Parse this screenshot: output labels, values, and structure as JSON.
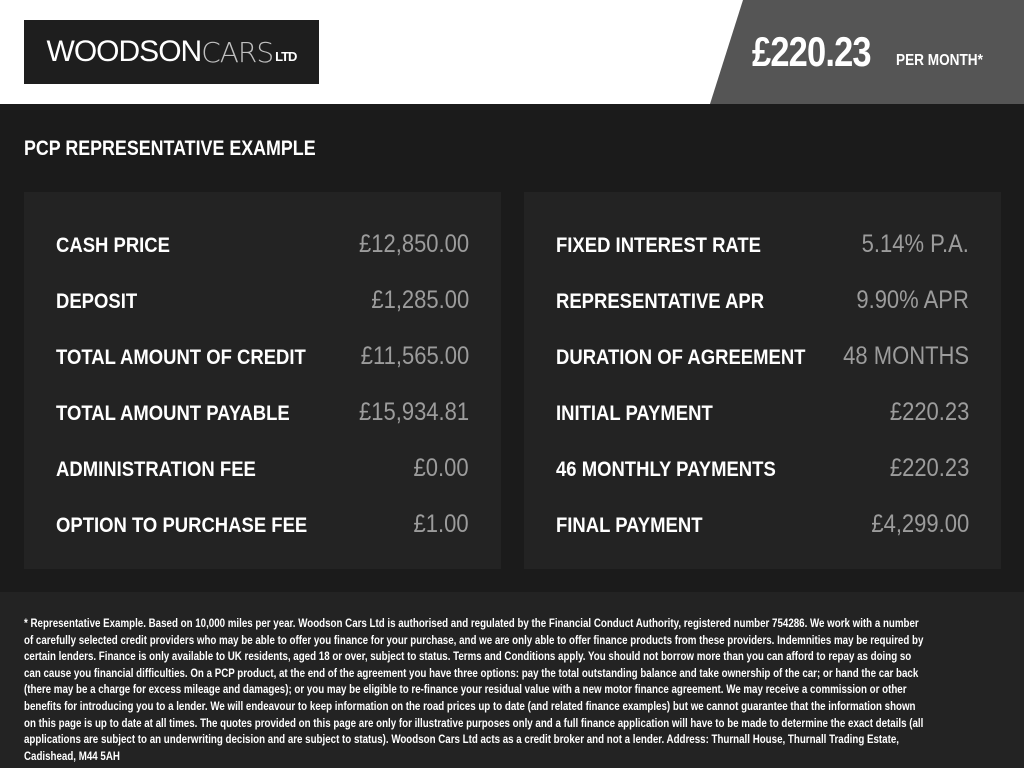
{
  "brand": {
    "logo_text_bold": "WOODSON",
    "logo_text_thin": "CARS",
    "logo_text_suffix": "LTD"
  },
  "header": {
    "monthly_price": "£220.23",
    "per_month_label": "PER MONTH*"
  },
  "section_title": "PCP REPRESENTATIVE EXAMPLE",
  "left_items": [
    {
      "label": "CASH PRICE",
      "value": "£12,850.00"
    },
    {
      "label": "DEPOSIT",
      "value": "£1,285.00"
    },
    {
      "label": "TOTAL AMOUNT OF CREDIT",
      "value": "£11,565.00"
    },
    {
      "label": "TOTAL AMOUNT PAYABLE",
      "value": "£15,934.81"
    },
    {
      "label": "ADMINISTRATION FEE",
      "value": "£0.00"
    },
    {
      "label": "OPTION TO PURCHASE FEE",
      "value": "£1.00"
    }
  ],
  "right_items": [
    {
      "label": "FIXED INTEREST RATE",
      "value": "5.14% P.A."
    },
    {
      "label": "REPRESENTATIVE APR",
      "value": "9.90% APR"
    },
    {
      "label": "DURATION OF AGREEMENT",
      "value": "48 MONTHS"
    },
    {
      "label": "INITIAL PAYMENT",
      "value": "£220.23"
    },
    {
      "label": "46 MONTHLY PAYMENTS",
      "value": "£220.23"
    },
    {
      "label": "FINAL PAYMENT",
      "value": "£4,299.00"
    }
  ],
  "disclaimer": "* Representative Example. Based on 10,000 miles per year. Woodson Cars Ltd is authorised and regulated by the Financial Conduct Authority, registered number 754286. We work with a number of carefully selected credit providers who may be able to offer you finance for your purchase, and we are only able to offer finance products from these providers. Indemnities may be required by certain lenders. Finance is only available to UK residents, aged 18 or over, subject to status. Terms and Conditions apply. You should not borrow more than you can afford to repay as doing so can cause you financial difficulties. On a PCP product, at the end of the agreement you have three options: pay the total outstanding balance and take ownership of the car; or hand the car back (there may be a charge for excess mileage and damages); or you may be eligible to re-finance your residual value with a new motor finance agreement. We may receive a commission or other benefits for introducing you to a lender. We will endeavour to keep information on the road prices up to date (and related finance examples) but we cannot guarantee that the information shown on this page is up to date at all times. The quotes provided on this page are only for illustrative purposes only and a full finance application will have to be made to determine the exact details (all applications are subject to an underwriting decision and are subject to status). Woodson Cars Ltd acts as a credit broker and not a lender. Address: Thurnall House, Thurnall Trading Estate, Cadishead, M44 5AH",
  "colors": {
    "header_bg": "#ffffff",
    "price_panel": "#555555",
    "page_bg": "#1b1b1b",
    "card_bg": "#232323",
    "value_text": "#9c9c9c"
  }
}
